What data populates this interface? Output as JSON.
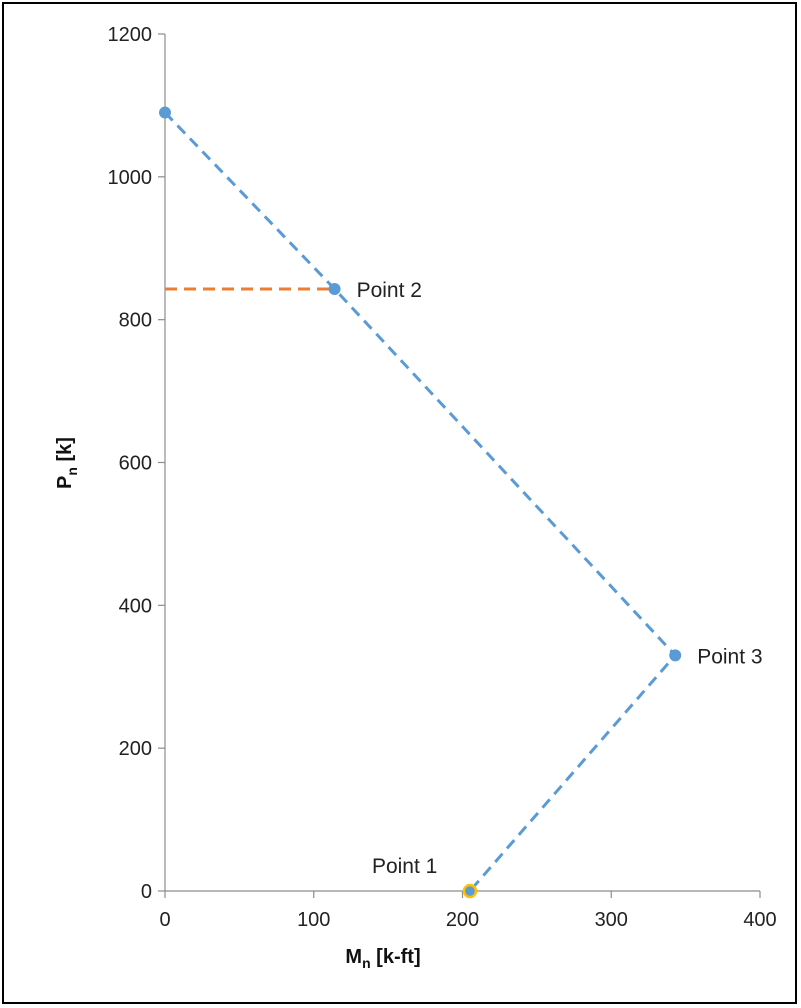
{
  "chart_data": {
    "type": "scatter",
    "title": "",
    "xlabel": {
      "main": "M",
      "sub": "n",
      "rest": " [k-ft]"
    },
    "ylabel": {
      "main": "P",
      "sub": "n",
      "rest": " [k]"
    },
    "xlim": [
      0,
      400
    ],
    "ylim": [
      0,
      1200
    ],
    "xticks": [
      0,
      100,
      200,
      300,
      400
    ],
    "yticks": [
      0,
      200,
      400,
      600,
      800,
      1000,
      1200
    ],
    "grid": false,
    "legend": "none",
    "series": [
      {
        "line_style": "dashed",
        "color": "#5B9BD5",
        "points": [
          {
            "x": 0,
            "y": 1090,
            "label": ""
          },
          {
            "x": 114,
            "y": 843,
            "label": "Point 2"
          },
          {
            "x": 343,
            "y": 330,
            "label": "Point 3"
          },
          {
            "x": 205,
            "y": 0,
            "label": "Point 1"
          }
        ]
      },
      {
        "line_style": "dashed",
        "color": "#ED7D31",
        "points": [
          {
            "x": 0,
            "y": 843
          },
          {
            "x": 114,
            "y": 843
          }
        ]
      }
    ],
    "highlight_marker": {
      "x": 205,
      "y": 0,
      "color": "#FFC000"
    }
  }
}
